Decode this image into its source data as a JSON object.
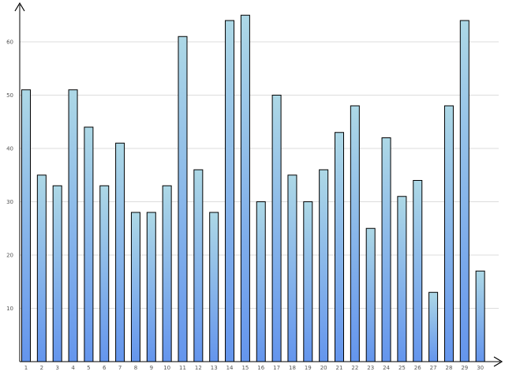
{
  "chart_data": {
    "type": "bar",
    "title": "",
    "xlabel": "",
    "ylabel": "",
    "categories": [
      "1",
      "2",
      "3",
      "4",
      "5",
      "6",
      "7",
      "8",
      "9",
      "10",
      "11",
      "12",
      "13",
      "14",
      "15",
      "16",
      "17",
      "18",
      "19",
      "20",
      "21",
      "22",
      "23",
      "24",
      "25",
      "26",
      "27",
      "28",
      "29",
      "30"
    ],
    "values": [
      51,
      35,
      33,
      51,
      44,
      33,
      41,
      28,
      28,
      33,
      61,
      36,
      28,
      64,
      65,
      30,
      50,
      35,
      30,
      36,
      43,
      48,
      25,
      42,
      31,
      34,
      13,
      48,
      64,
      17
    ],
    "ylim": [
      0,
      66
    ],
    "yticks": [
      "10",
      "20",
      "30",
      "40",
      "50",
      "60"
    ],
    "grid": true,
    "legend": "none",
    "colors": {
      "bar_top": "#add8e6",
      "bar_bottom": "#6495ed",
      "bar_stroke": "#000000",
      "grid": "#dddddd",
      "axis": "#000000"
    }
  }
}
